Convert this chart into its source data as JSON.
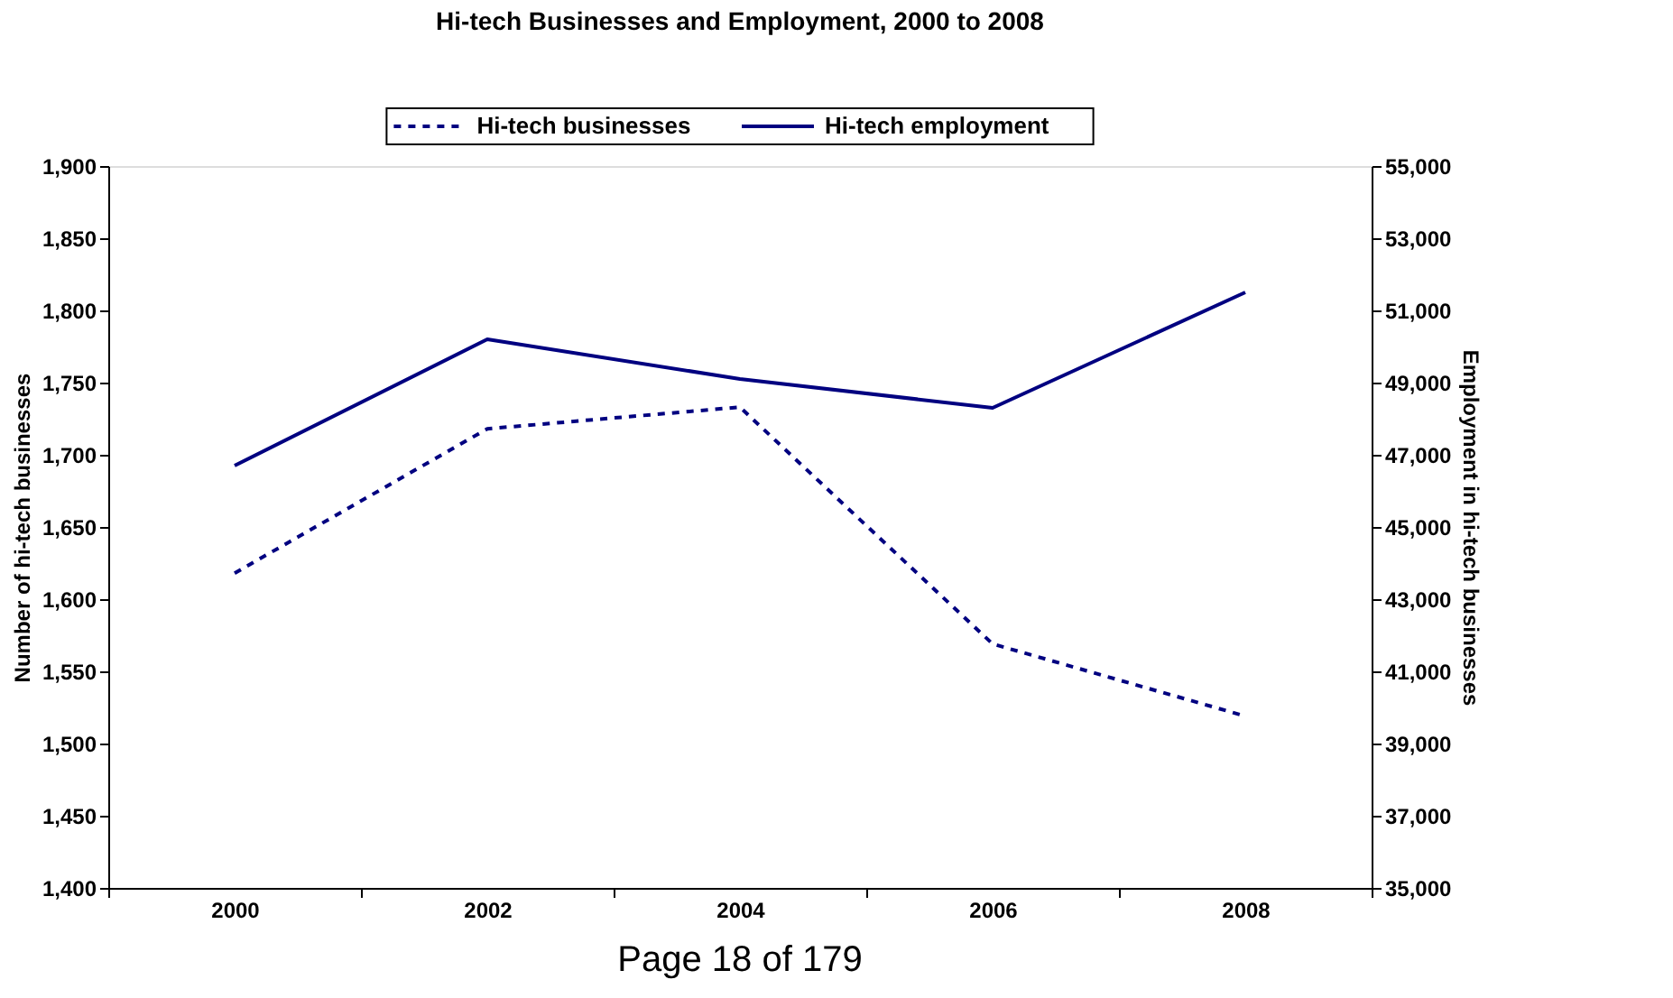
{
  "chart_data": {
    "type": "line",
    "title": "Hi-tech Businesses and Employment, 2000 to 2008",
    "ylabel": "Number of hi-tech businesses",
    "y2label": "Employment in hi-tech businesses",
    "categories": [
      "2000",
      "2002",
      "2004",
      "2006",
      "2008"
    ],
    "series": [
      {
        "name": "Hi-tech businesses",
        "color": "#000080",
        "line_style": "dashed",
        "values": [
          1618,
          1718,
          1733,
          1569,
          1519
        ]
      },
      {
        "name": "Hi-tech employment",
        "color": "#000080",
        "line_style": "solid",
        "axis": "y2",
        "values": [
          46700,
          50200,
          49100,
          48300,
          51500
        ]
      }
    ],
    "ylim": [
      1400,
      1900
    ],
    "yticks": [
      {
        "value": 1400,
        "label": "1,400"
      },
      {
        "value": 1450,
        "label": "1,450"
      },
      {
        "value": 1500,
        "label": "1,500"
      },
      {
        "value": 1550,
        "label": "1,550"
      },
      {
        "value": 1600,
        "label": "1,600"
      },
      {
        "value": 1650,
        "label": "1,650"
      },
      {
        "value": 1700,
        "label": "1,700"
      },
      {
        "value": 1750,
        "label": "1,750"
      },
      {
        "value": 1800,
        "label": "1,800"
      },
      {
        "value": 1850,
        "label": "1,850"
      },
      {
        "value": 1900,
        "label": "1,900"
      }
    ],
    "y2lim": [
      35000,
      55000
    ],
    "y2ticks": [
      {
        "value": 35000,
        "label": "35,000"
      },
      {
        "value": 37000,
        "label": "37,000"
      },
      {
        "value": 39000,
        "label": "39,000"
      },
      {
        "value": 41000,
        "label": "41,000"
      },
      {
        "value": 43000,
        "label": "43,000"
      },
      {
        "value": 45000,
        "label": "45,000"
      },
      {
        "value": 47000,
        "label": "47,000"
      },
      {
        "value": 49000,
        "label": "49,000"
      },
      {
        "value": 51000,
        "label": "51,000"
      },
      {
        "value": 53000,
        "label": "53,000"
      },
      {
        "value": 55000,
        "label": "55,000"
      }
    ],
    "grid": false,
    "legend": "top",
    "marker": "none",
    "annotations": [
      "Page 18 of 179"
    ]
  }
}
